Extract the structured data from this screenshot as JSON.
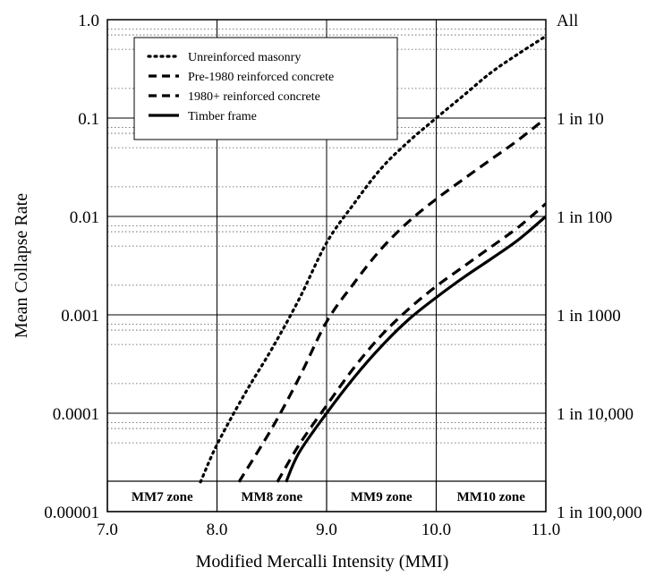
{
  "chart_data": {
    "type": "line",
    "title": "",
    "xlabel": "Modified Mercalli Intensity (MMI)",
    "ylabel": "Mean Collapse Rate",
    "xlim": [
      7.0,
      11.0
    ],
    "ylim": [
      1e-05,
      1.0
    ],
    "yscale": "log",
    "grid": true,
    "x_ticks": [
      "7.0",
      "8.0",
      "9.0",
      "10.0",
      "11.0"
    ],
    "y_ticks": [
      "0.00001",
      "0.0001",
      "0.001",
      "0.01",
      "0.1",
      "1.0"
    ],
    "right_axis_ticks": [
      "1 in 100,000",
      "1 in 10,000",
      "1 in 1000",
      "1 in 100",
      "1 in 10",
      "All"
    ],
    "legend_position": "top-left",
    "zones": [
      {
        "label": "MM7 zone",
        "x0": 7.0,
        "x1": 8.0
      },
      {
        "label": "MM8 zone",
        "x0": 8.0,
        "x1": 9.0
      },
      {
        "label": "MM9 zone",
        "x0": 9.0,
        "x1": 10.0
      },
      {
        "label": "MM10 zone",
        "x0": 10.0,
        "x1": 11.0
      }
    ],
    "series": [
      {
        "name": "Unreinforced masonry",
        "style": "dotted",
        "x": [
          7.85,
          8.0,
          8.25,
          8.5,
          8.75,
          9.0,
          9.25,
          9.5,
          9.75,
          10.0,
          10.25,
          10.5,
          10.75,
          11.0
        ],
        "y": [
          2e-05,
          4.8e-05,
          0.000155,
          0.00045,
          0.00145,
          0.0054,
          0.0135,
          0.031,
          0.058,
          0.1,
          0.17,
          0.29,
          0.45,
          0.68
        ]
      },
      {
        "name": "Pre-1980 reinforced concrete",
        "style": "dashed",
        "x": [
          8.2,
          8.5,
          8.75,
          9.0,
          9.25,
          9.5,
          9.75,
          10.0,
          10.25,
          10.5,
          10.75,
          11.0
        ],
        "y": [
          2e-05,
          7e-05,
          0.00023,
          0.00085,
          0.0021,
          0.0047,
          0.0089,
          0.015,
          0.024,
          0.038,
          0.06,
          0.1
        ]
      },
      {
        "name": "1980+ reinforced concrete",
        "style": "dashed",
        "x": [
          8.55,
          8.75,
          9.0,
          9.25,
          9.5,
          9.75,
          10.0,
          10.25,
          10.5,
          10.75,
          11.0
        ],
        "y": [
          2e-05,
          4.8e-05,
          0.00012,
          0.00029,
          0.00062,
          0.00115,
          0.00195,
          0.0031,
          0.0049,
          0.0078,
          0.0135
        ]
      },
      {
        "name": "Timber frame",
        "style": "solid",
        "x": [
          8.63,
          8.75,
          9.0,
          9.25,
          9.5,
          9.75,
          10.0,
          10.25,
          10.5,
          10.75,
          11.0
        ],
        "y": [
          2e-05,
          4e-05,
          0.0001,
          0.00023,
          0.00048,
          0.0009,
          0.0015,
          0.0024,
          0.0037,
          0.0058,
          0.01
        ]
      }
    ]
  }
}
